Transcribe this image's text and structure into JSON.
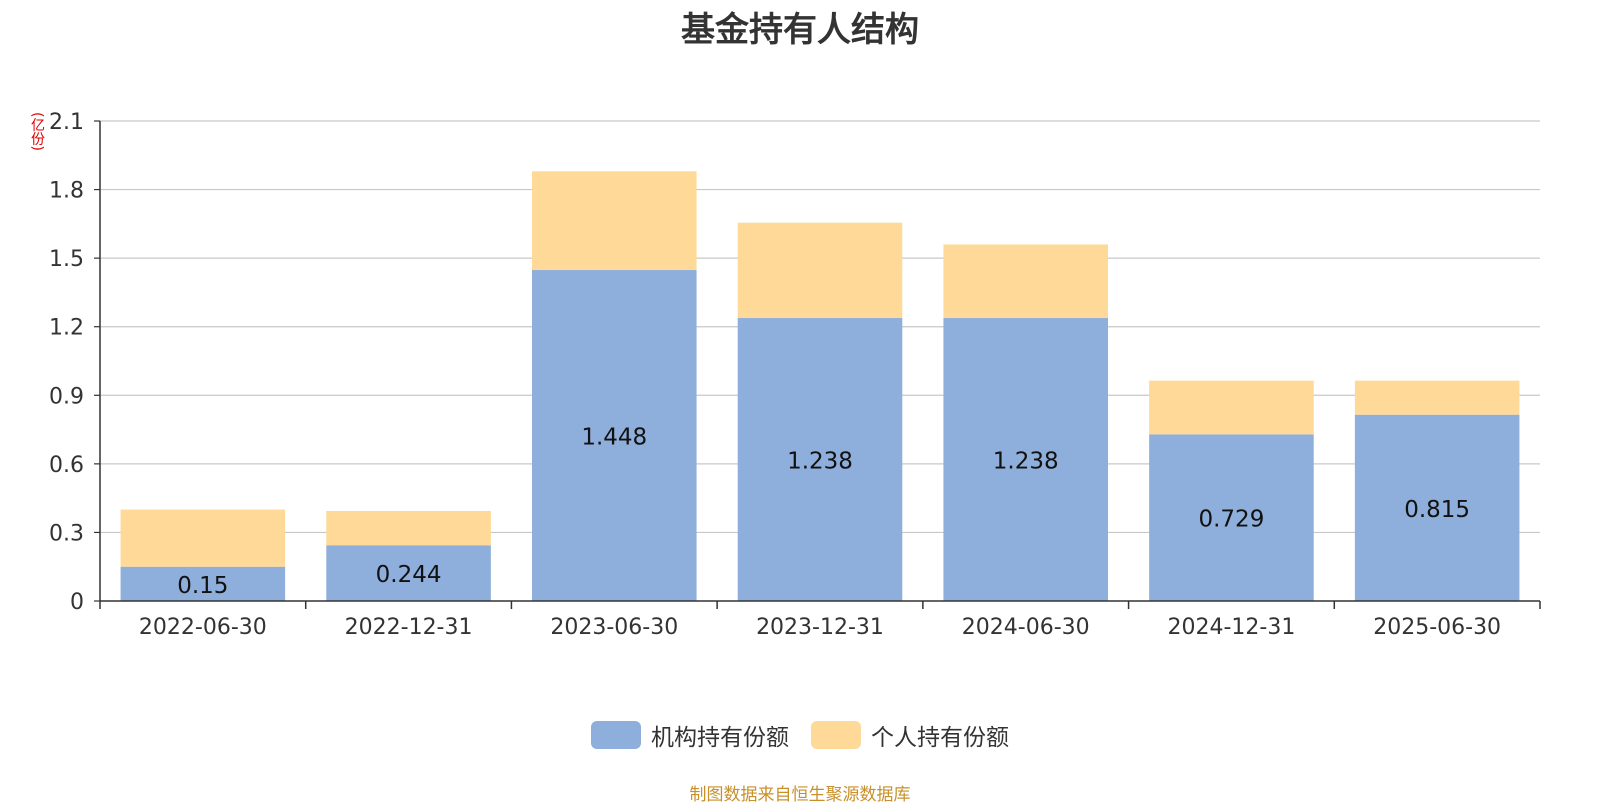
{
  "chart_data": {
    "type": "bar",
    "stacked": true,
    "title": "基金持有人结构",
    "ylabel": "(亿份)",
    "ylim": [
      0,
      2.1
    ],
    "yticks": [
      "0",
      "0.3",
      "0.6",
      "0.9",
      "1.2",
      "1.5",
      "1.8",
      "2.1"
    ],
    "grid": true,
    "legend_position": "bottom",
    "categories": [
      "2022-06-30",
      "2022-12-31",
      "2023-06-30",
      "2023-12-31",
      "2024-06-30",
      "2024-12-31",
      "2025-06-30"
    ],
    "series": [
      {
        "name": "机构持有份额",
        "color": "#8eaedb",
        "show_labels": true,
        "values": [
          0.15,
          0.244,
          1.448,
          1.238,
          1.238,
          0.729,
          0.815
        ]
      },
      {
        "name": "个人持有份额",
        "color": "#fed998",
        "show_labels": false,
        "values": [
          0.25,
          0.15,
          0.432,
          0.417,
          0.322,
          0.235,
          0.149
        ]
      }
    ]
  },
  "source_note": "制图数据来自恒生聚源数据库"
}
